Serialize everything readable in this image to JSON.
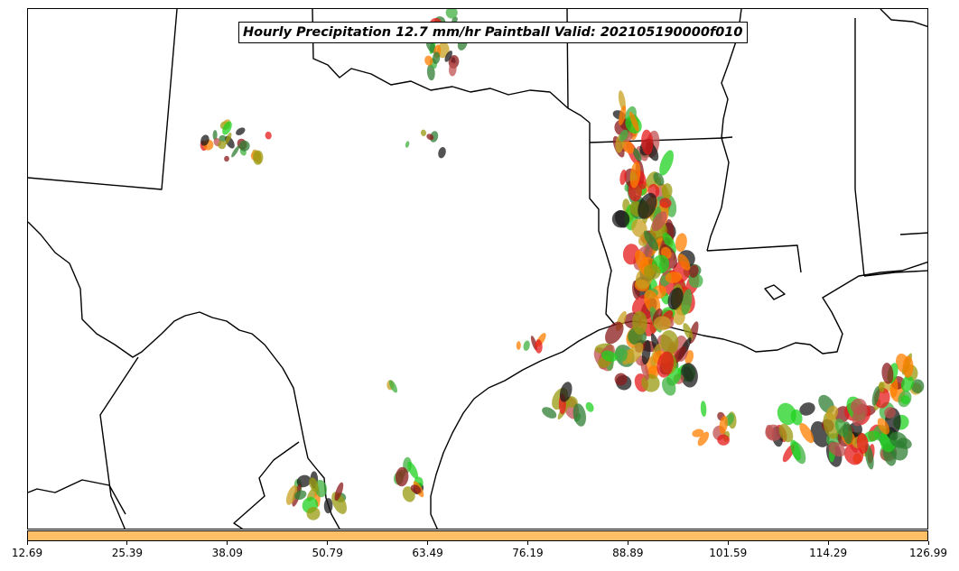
{
  "title": "Hourly Precipitation 12.7 mm/hr Paintball Valid: 202105190000f010",
  "colorbar": {
    "color": "#ffbf66",
    "ticks": [
      "12.69",
      "25.39",
      "38.09",
      "50.79",
      "63.49",
      "76.19",
      "88.89",
      "101.59",
      "114.29",
      "126.99"
    ]
  },
  "member_colors": [
    "#e61a1a",
    "#ff7f00",
    "#8b1a1a",
    "#2e7d32",
    "#1fd11f",
    "#9a9a10",
    "#c8a020",
    "#1a1a1a",
    "#c05050",
    "#40b040"
  ]
}
